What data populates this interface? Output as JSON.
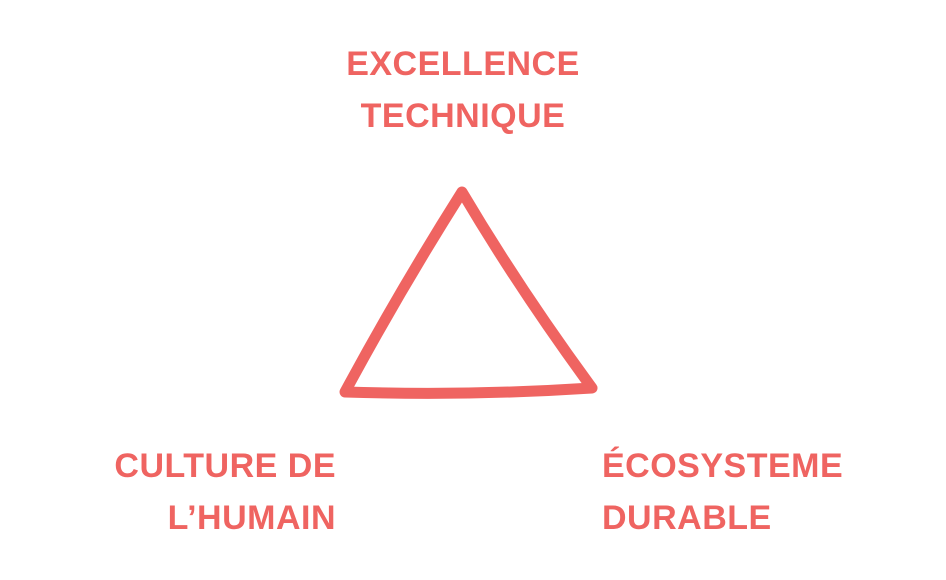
{
  "colors": {
    "accent": "#ef6461"
  },
  "labels": {
    "top": {
      "line1": "EXCELLENCE",
      "line2": "TECHNIQUE"
    },
    "bottom_left": {
      "line1": "CULTURE DE",
      "line2": "L’HUMAIN"
    },
    "bottom_right": {
      "line1": "ÉCOSYSTEME",
      "line2": "DURABLE"
    }
  }
}
